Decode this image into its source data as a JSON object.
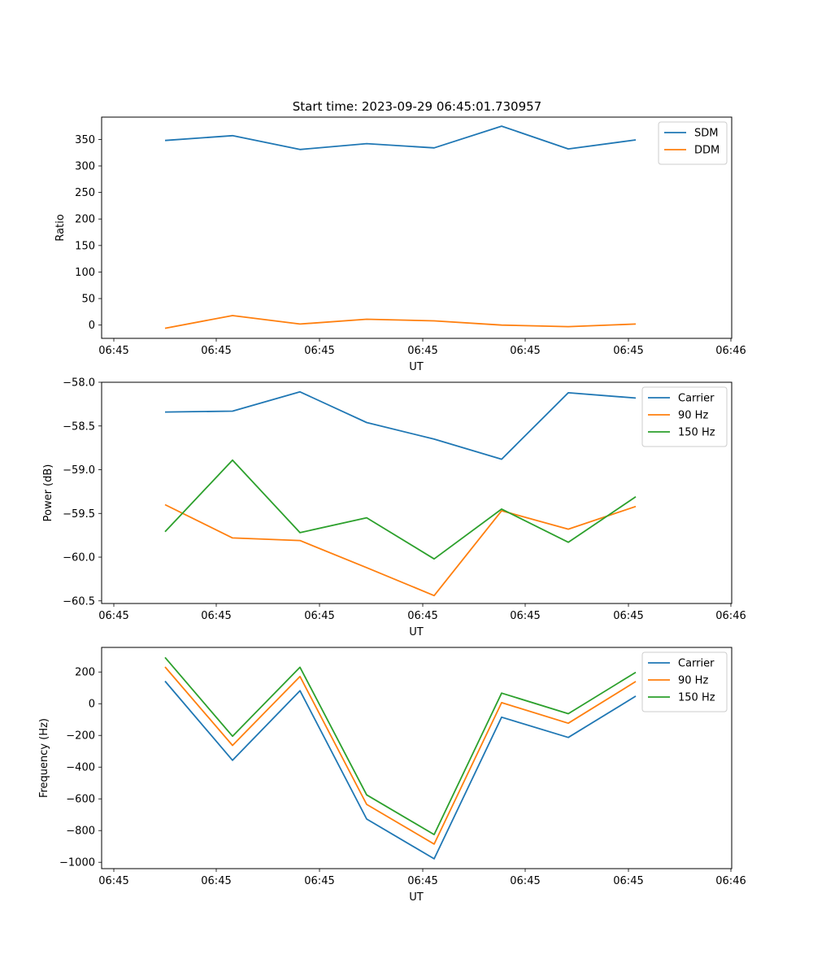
{
  "figure": {
    "title": "Start time: 2023-09-29 06:45:01.730957"
  },
  "chart_data": [
    {
      "type": "line",
      "title": "",
      "xlabel": "UT",
      "ylabel": "Ratio",
      "ylim": [
        -25,
        392
      ],
      "x_tick_labels": [
        "06:45",
        "06:45",
        "06:45",
        "06:45",
        "06:45",
        "06:45",
        "06:46"
      ],
      "y_ticks": [
        0,
        50,
        100,
        150,
        200,
        250,
        300,
        350
      ],
      "legend_position": "upper-right",
      "series": [
        {
          "name": "SDM",
          "color": "#1f77b4",
          "values": [
            348,
            357,
            331,
            342,
            334,
            375,
            332,
            349
          ]
        },
        {
          "name": "DDM",
          "color": "#ff7f0e",
          "values": [
            -6,
            18,
            2,
            11,
            8,
            0,
            -3,
            2
          ]
        }
      ]
    },
    {
      "type": "line",
      "title": "",
      "xlabel": "UT",
      "ylabel": "Power (dB)",
      "ylim": [
        -60.53,
        -58.0
      ],
      "x_tick_labels": [
        "06:45",
        "06:45",
        "06:45",
        "06:45",
        "06:45",
        "06:45",
        "06:46"
      ],
      "y_ticks": [
        -58.0,
        -58.5,
        -59.0,
        -59.5,
        -60.0,
        -60.5
      ],
      "y_tick_labels": [
        "−58.0",
        "−58.5",
        "−59.0",
        "−59.5",
        "−60.0",
        "−60.5"
      ],
      "legend_position": "upper-right",
      "series": [
        {
          "name": "Carrier",
          "color": "#1f77b4",
          "values": [
            -58.34,
            -58.33,
            -58.11,
            -58.46,
            -58.65,
            -58.88,
            -58.12,
            -58.18
          ]
        },
        {
          "name": "90 Hz",
          "color": "#ff7f0e",
          "values": [
            -59.4,
            -59.78,
            -59.81,
            -60.12,
            -60.44,
            -59.47,
            -59.68,
            -59.42
          ]
        },
        {
          "name": "150 Hz",
          "color": "#2ca02c",
          "values": [
            -59.71,
            -58.89,
            -59.72,
            -59.55,
            -60.02,
            -59.45,
            -59.83,
            -59.31
          ]
        }
      ]
    },
    {
      "type": "line",
      "title": "",
      "xlabel": "UT",
      "ylabel": "Frequency (Hz)",
      "ylim": [
        -1040,
        355
      ],
      "x_tick_labels": [
        "06:45",
        "06:45",
        "06:45",
        "06:45",
        "06:45",
        "06:45",
        "06:46"
      ],
      "y_ticks": [
        200,
        0,
        -200,
        -400,
        -600,
        -800,
        -1000
      ],
      "y_tick_labels": [
        "200",
        "0",
        "−200",
        "−400",
        "−600",
        "−800",
        "−1000"
      ],
      "legend_position": "upper-right",
      "series": [
        {
          "name": "Carrier",
          "color": "#1f77b4",
          "values": [
            142,
            -357,
            82,
            -727,
            -978,
            -85,
            -213,
            48
          ]
        },
        {
          "name": "90 Hz",
          "color": "#ff7f0e",
          "values": [
            232,
            -263,
            172,
            -635,
            -885,
            7,
            -123,
            140
          ]
        },
        {
          "name": "150 Hz",
          "color": "#2ca02c",
          "values": [
            292,
            -205,
            230,
            -575,
            -825,
            67,
            -63,
            198
          ]
        }
      ]
    }
  ]
}
